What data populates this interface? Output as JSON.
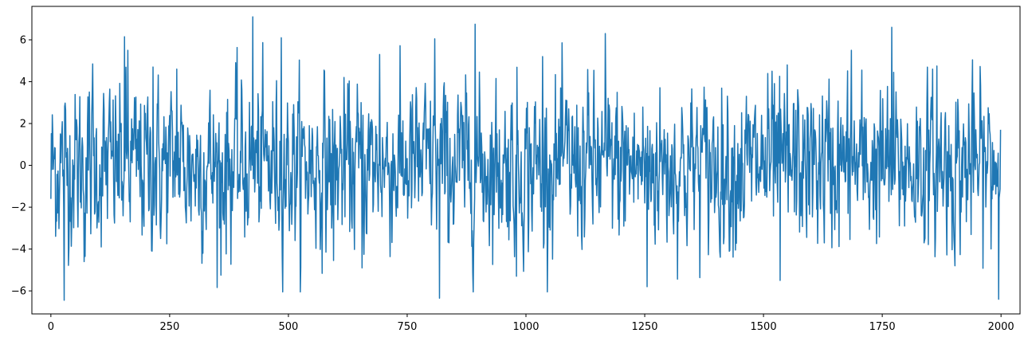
{
  "chart_data": {
    "type": "line",
    "title": "",
    "xlabel": "",
    "ylabel": "",
    "xlim": [
      -40,
      2040
    ],
    "ylim": [
      -7.1,
      7.6
    ],
    "x_ticks": [
      0,
      250,
      500,
      750,
      1000,
      1250,
      1500,
      1750,
      2000
    ],
    "x_tick_labels": [
      "0",
      "250",
      "500",
      "750",
      "1000",
      "1250",
      "1500",
      "1750",
      "2000"
    ],
    "y_ticks": [
      -6,
      -4,
      -2,
      0,
      2,
      4,
      6
    ],
    "y_tick_labels": [
      "−6",
      "−4",
      "−2",
      "0",
      "2",
      "4",
      "6"
    ],
    "grid": false,
    "legend": "none",
    "series": [
      {
        "color": "#1f77b4",
        "n_points": 2000,
        "mean": 0.0,
        "std": 1.9,
        "range": [
          -6.45,
          7.1
        ],
        "extremes": [
          {
            "x": 0,
            "y": -1.6
          },
          {
            "x": 28,
            "y": -6.45
          },
          {
            "x": 70,
            "y": -4.6
          },
          {
            "x": 88,
            "y": 4.85
          },
          {
            "x": 155,
            "y": 6.15
          },
          {
            "x": 162,
            "y": 5.5
          },
          {
            "x": 215,
            "y": 4.7
          },
          {
            "x": 265,
            "y": 4.6
          },
          {
            "x": 358,
            "y": -5.25
          },
          {
            "x": 425,
            "y": 7.1
          },
          {
            "x": 485,
            "y": 6.1
          },
          {
            "x": 595,
            "y": -4.55
          },
          {
            "x": 655,
            "y": -4.9
          },
          {
            "x": 692,
            "y": 5.3
          },
          {
            "x": 808,
            "y": 6.05
          },
          {
            "x": 818,
            "y": -6.35
          },
          {
            "x": 893,
            "y": 6.75
          },
          {
            "x": 980,
            "y": -5.3
          },
          {
            "x": 1035,
            "y": 5.2
          },
          {
            "x": 1167,
            "y": 6.3
          },
          {
            "x": 1255,
            "y": -5.8
          },
          {
            "x": 1535,
            "y": -5.5
          },
          {
            "x": 1550,
            "y": 4.8
          },
          {
            "x": 1685,
            "y": 5.5
          },
          {
            "x": 1770,
            "y": 6.6
          },
          {
            "x": 1865,
            "y": 4.75
          },
          {
            "x": 1995,
            "y": -6.4
          },
          {
            "x": 1999,
            "y": 1.7
          }
        ]
      }
    ]
  }
}
